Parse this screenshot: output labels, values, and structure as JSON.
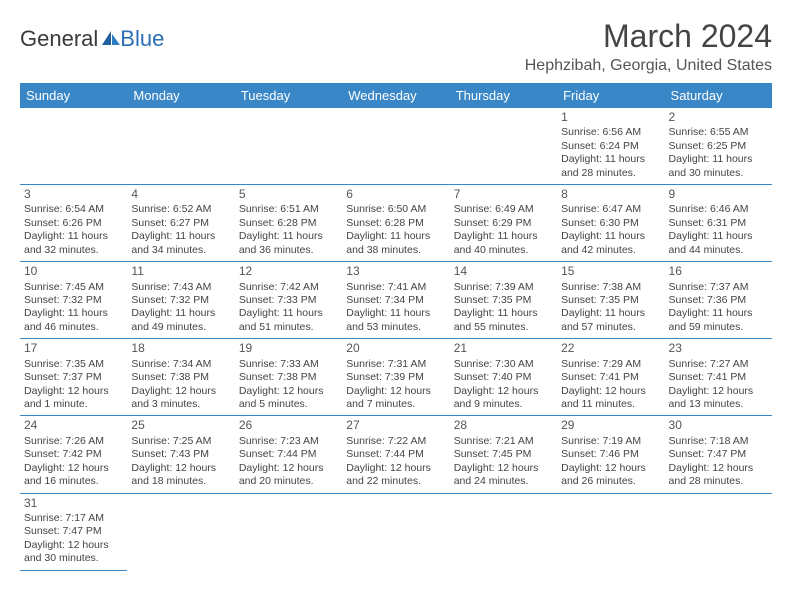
{
  "brand": {
    "part1": "General",
    "part2": "Blue"
  },
  "title": "March 2024",
  "location": "Hephzibah, Georgia, United States",
  "header_bg": "#3a87c8",
  "header_fg": "#ffffff",
  "rule_color": "#3a87c8",
  "day_headers": [
    "Sunday",
    "Monday",
    "Tuesday",
    "Wednesday",
    "Thursday",
    "Friday",
    "Saturday"
  ],
  "weeks": [
    [
      null,
      null,
      null,
      null,
      null,
      {
        "n": "1",
        "sr": "Sunrise: 6:56 AM",
        "ss": "Sunset: 6:24 PM",
        "d1": "Daylight: 11 hours",
        "d2": "and 28 minutes."
      },
      {
        "n": "2",
        "sr": "Sunrise: 6:55 AM",
        "ss": "Sunset: 6:25 PM",
        "d1": "Daylight: 11 hours",
        "d2": "and 30 minutes."
      }
    ],
    [
      {
        "n": "3",
        "sr": "Sunrise: 6:54 AM",
        "ss": "Sunset: 6:26 PM",
        "d1": "Daylight: 11 hours",
        "d2": "and 32 minutes."
      },
      {
        "n": "4",
        "sr": "Sunrise: 6:52 AM",
        "ss": "Sunset: 6:27 PM",
        "d1": "Daylight: 11 hours",
        "d2": "and 34 minutes."
      },
      {
        "n": "5",
        "sr": "Sunrise: 6:51 AM",
        "ss": "Sunset: 6:28 PM",
        "d1": "Daylight: 11 hours",
        "d2": "and 36 minutes."
      },
      {
        "n": "6",
        "sr": "Sunrise: 6:50 AM",
        "ss": "Sunset: 6:28 PM",
        "d1": "Daylight: 11 hours",
        "d2": "and 38 minutes."
      },
      {
        "n": "7",
        "sr": "Sunrise: 6:49 AM",
        "ss": "Sunset: 6:29 PM",
        "d1": "Daylight: 11 hours",
        "d2": "and 40 minutes."
      },
      {
        "n": "8",
        "sr": "Sunrise: 6:47 AM",
        "ss": "Sunset: 6:30 PM",
        "d1": "Daylight: 11 hours",
        "d2": "and 42 minutes."
      },
      {
        "n": "9",
        "sr": "Sunrise: 6:46 AM",
        "ss": "Sunset: 6:31 PM",
        "d1": "Daylight: 11 hours",
        "d2": "and 44 minutes."
      }
    ],
    [
      {
        "n": "10",
        "sr": "Sunrise: 7:45 AM",
        "ss": "Sunset: 7:32 PM",
        "d1": "Daylight: 11 hours",
        "d2": "and 46 minutes."
      },
      {
        "n": "11",
        "sr": "Sunrise: 7:43 AM",
        "ss": "Sunset: 7:32 PM",
        "d1": "Daylight: 11 hours",
        "d2": "and 49 minutes."
      },
      {
        "n": "12",
        "sr": "Sunrise: 7:42 AM",
        "ss": "Sunset: 7:33 PM",
        "d1": "Daylight: 11 hours",
        "d2": "and 51 minutes."
      },
      {
        "n": "13",
        "sr": "Sunrise: 7:41 AM",
        "ss": "Sunset: 7:34 PM",
        "d1": "Daylight: 11 hours",
        "d2": "and 53 minutes."
      },
      {
        "n": "14",
        "sr": "Sunrise: 7:39 AM",
        "ss": "Sunset: 7:35 PM",
        "d1": "Daylight: 11 hours",
        "d2": "and 55 minutes."
      },
      {
        "n": "15",
        "sr": "Sunrise: 7:38 AM",
        "ss": "Sunset: 7:35 PM",
        "d1": "Daylight: 11 hours",
        "d2": "and 57 minutes."
      },
      {
        "n": "16",
        "sr": "Sunrise: 7:37 AM",
        "ss": "Sunset: 7:36 PM",
        "d1": "Daylight: 11 hours",
        "d2": "and 59 minutes."
      }
    ],
    [
      {
        "n": "17",
        "sr": "Sunrise: 7:35 AM",
        "ss": "Sunset: 7:37 PM",
        "d1": "Daylight: 12 hours",
        "d2": "and 1 minute."
      },
      {
        "n": "18",
        "sr": "Sunrise: 7:34 AM",
        "ss": "Sunset: 7:38 PM",
        "d1": "Daylight: 12 hours",
        "d2": "and 3 minutes."
      },
      {
        "n": "19",
        "sr": "Sunrise: 7:33 AM",
        "ss": "Sunset: 7:38 PM",
        "d1": "Daylight: 12 hours",
        "d2": "and 5 minutes."
      },
      {
        "n": "20",
        "sr": "Sunrise: 7:31 AM",
        "ss": "Sunset: 7:39 PM",
        "d1": "Daylight: 12 hours",
        "d2": "and 7 minutes."
      },
      {
        "n": "21",
        "sr": "Sunrise: 7:30 AM",
        "ss": "Sunset: 7:40 PM",
        "d1": "Daylight: 12 hours",
        "d2": "and 9 minutes."
      },
      {
        "n": "22",
        "sr": "Sunrise: 7:29 AM",
        "ss": "Sunset: 7:41 PM",
        "d1": "Daylight: 12 hours",
        "d2": "and 11 minutes."
      },
      {
        "n": "23",
        "sr": "Sunrise: 7:27 AM",
        "ss": "Sunset: 7:41 PM",
        "d1": "Daylight: 12 hours",
        "d2": "and 13 minutes."
      }
    ],
    [
      {
        "n": "24",
        "sr": "Sunrise: 7:26 AM",
        "ss": "Sunset: 7:42 PM",
        "d1": "Daylight: 12 hours",
        "d2": "and 16 minutes."
      },
      {
        "n": "25",
        "sr": "Sunrise: 7:25 AM",
        "ss": "Sunset: 7:43 PM",
        "d1": "Daylight: 12 hours",
        "d2": "and 18 minutes."
      },
      {
        "n": "26",
        "sr": "Sunrise: 7:23 AM",
        "ss": "Sunset: 7:44 PM",
        "d1": "Daylight: 12 hours",
        "d2": "and 20 minutes."
      },
      {
        "n": "27",
        "sr": "Sunrise: 7:22 AM",
        "ss": "Sunset: 7:44 PM",
        "d1": "Daylight: 12 hours",
        "d2": "and 22 minutes."
      },
      {
        "n": "28",
        "sr": "Sunrise: 7:21 AM",
        "ss": "Sunset: 7:45 PM",
        "d1": "Daylight: 12 hours",
        "d2": "and 24 minutes."
      },
      {
        "n": "29",
        "sr": "Sunrise: 7:19 AM",
        "ss": "Sunset: 7:46 PM",
        "d1": "Daylight: 12 hours",
        "d2": "and 26 minutes."
      },
      {
        "n": "30",
        "sr": "Sunrise: 7:18 AM",
        "ss": "Sunset: 7:47 PM",
        "d1": "Daylight: 12 hours",
        "d2": "and 28 minutes."
      }
    ],
    [
      {
        "n": "31",
        "sr": "Sunrise: 7:17 AM",
        "ss": "Sunset: 7:47 PM",
        "d1": "Daylight: 12 hours",
        "d2": "and 30 minutes."
      },
      null,
      null,
      null,
      null,
      null,
      null
    ]
  ]
}
